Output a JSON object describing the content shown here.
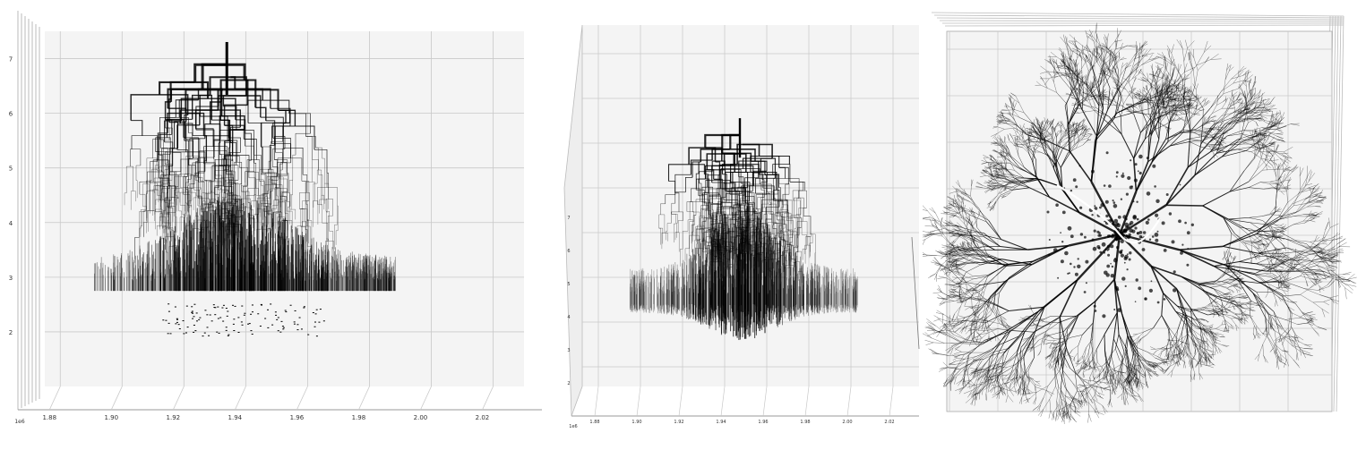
{
  "chart_data": [
    {
      "type": "line",
      "view": "side",
      "x_ticks": [
        "1.88",
        "1.90",
        "1.92",
        "1.94",
        "1.96",
        "1.98",
        "2.00",
        "2.02"
      ],
      "x_tick_values": [
        1.88,
        1.9,
        1.92,
        1.94,
        1.96,
        1.98,
        2.0,
        2.02
      ],
      "x_offset_label": "1e6",
      "z_ticks": [
        "2",
        "3",
        "4",
        "5",
        "6",
        "7"
      ],
      "z_tick_values": [
        2,
        3,
        4,
        5,
        6,
        7
      ],
      "xlim": [
        1.875,
        2.03
      ],
      "zlim": [
        1.0,
        7.5
      ],
      "grid": true,
      "colors": {
        "pane": "#f4f4f4",
        "grid": "#c8c8c8",
        "ink": "#000000"
      }
    },
    {
      "type": "line",
      "view": "oblique",
      "x_ticks": [
        "1.88",
        "1.90",
        "1.92",
        "1.94",
        "1.96",
        "1.98",
        "2.00",
        "2.02"
      ],
      "x_tick_values": [
        1.88,
        1.9,
        1.92,
        1.94,
        1.96,
        1.98,
        2.0,
        2.02
      ],
      "x_offset_label": "1e6",
      "z_ticks": [
        "2",
        "3",
        "4",
        "5",
        "6",
        "7"
      ],
      "z_tick_values": [
        2,
        3,
        4,
        5,
        6,
        7
      ],
      "grid": true,
      "colors": {
        "pane": "#f4f4f4",
        "grid": "#c8c8c8",
        "ink": "#000000"
      }
    },
    {
      "type": "scatter",
      "view": "top",
      "grid": true,
      "colors": {
        "pane": "#f4f4f4",
        "grid": "#c8c8c8",
        "ink": "#000000"
      }
    }
  ]
}
